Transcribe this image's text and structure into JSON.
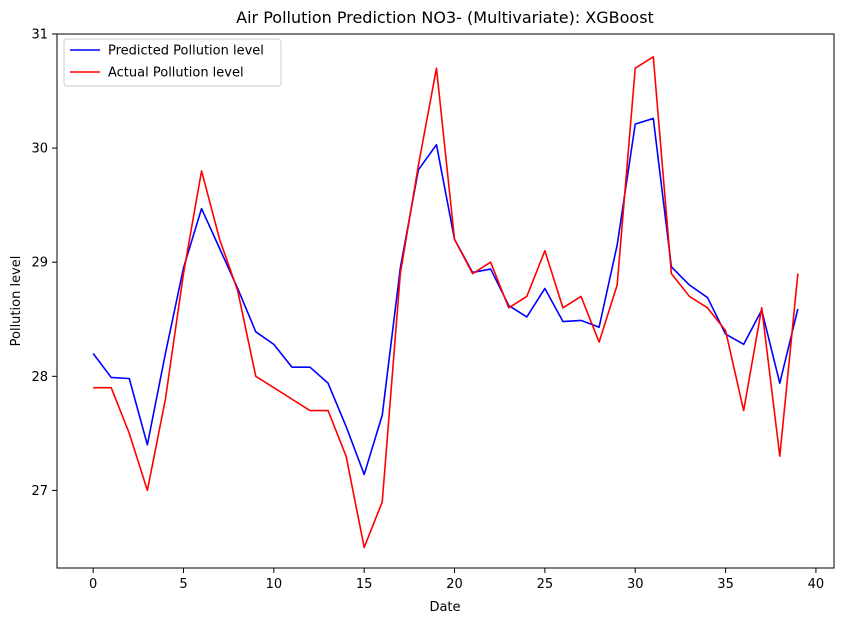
{
  "chart_data": {
    "type": "line",
    "title": "Air Pollution Prediction NO3- (Multivariate): XGBoost",
    "xlabel": "Date",
    "ylabel": "Pollution level",
    "xlim": [
      -2,
      41
    ],
    "ylim": [
      26.32,
      31.0
    ],
    "xticks": [
      0,
      5,
      10,
      15,
      20,
      25,
      30,
      35,
      40
    ],
    "yticks": [
      27,
      28,
      29,
      30,
      31
    ],
    "grid": false,
    "legend_position": "top-left",
    "x": [
      0,
      1,
      2,
      3,
      4,
      5,
      6,
      7,
      8,
      9,
      10,
      11,
      12,
      13,
      14,
      15,
      16,
      17,
      18,
      19,
      20,
      21,
      22,
      23,
      24,
      25,
      26,
      27,
      28,
      29,
      30,
      31,
      32,
      33,
      34,
      35,
      36,
      37,
      38,
      39
    ],
    "series": [
      {
        "name": "Predicted Pollution level",
        "color": "#0000ff",
        "values": [
          28.2,
          27.99,
          27.98,
          27.4,
          28.2,
          28.95,
          29.47,
          29.12,
          28.77,
          28.39,
          28.28,
          28.08,
          28.08,
          27.94,
          27.56,
          27.14,
          27.66,
          28.95,
          29.81,
          30.03,
          29.2,
          28.91,
          28.94,
          28.62,
          28.52,
          28.77,
          28.48,
          28.49,
          28.43,
          29.15,
          30.21,
          30.26,
          28.96,
          28.8,
          28.69,
          28.37,
          28.28,
          28.58,
          27.94,
          28.59
        ]
      },
      {
        "name": "Actual Pollution level",
        "color": "#ff0000",
        "values": [
          27.9,
          27.9,
          27.5,
          27.0,
          27.8,
          28.9,
          29.8,
          29.2,
          28.75,
          28.0,
          27.9,
          27.8,
          27.7,
          27.7,
          27.3,
          26.5,
          26.9,
          28.9,
          29.85,
          30.7,
          29.2,
          28.9,
          29.0,
          28.6,
          28.7,
          29.1,
          28.6,
          28.7,
          28.3,
          28.8,
          30.7,
          30.8,
          28.9,
          28.7,
          28.6,
          28.4,
          27.7,
          28.6,
          27.3,
          28.9
        ]
      }
    ]
  }
}
